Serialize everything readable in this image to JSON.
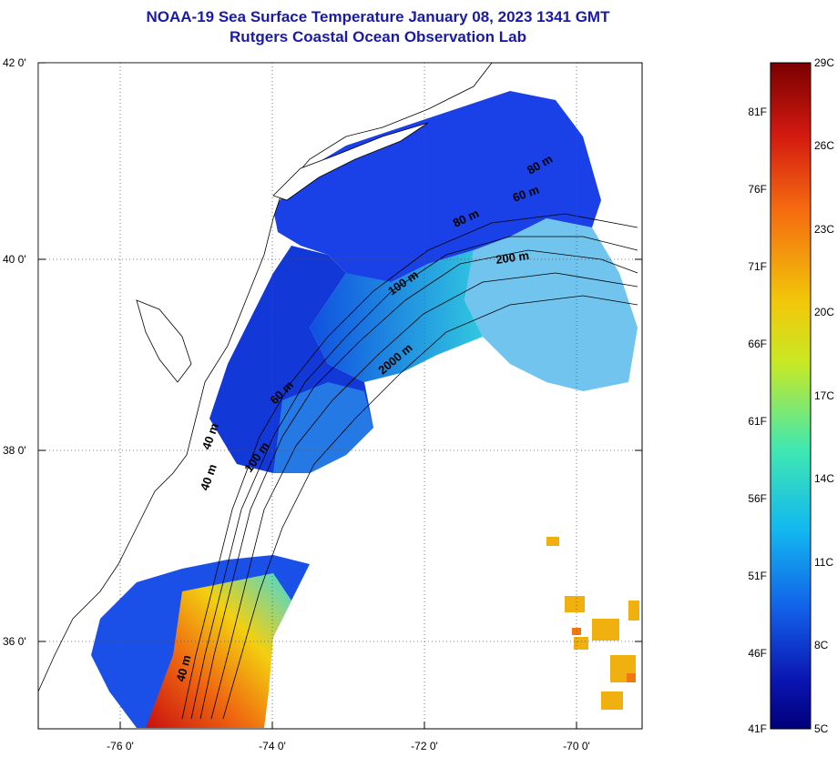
{
  "title": {
    "line1": "NOAA-19 Sea Surface Temperature January 08, 2023 1341 GMT",
    "line2": "Rutgers Coastal Ocean Observation Lab"
  },
  "map": {
    "lat_labels": [
      "42 0'",
      "40 0'",
      "38 0'",
      "36 0'"
    ],
    "lon_labels": [
      "-76 0'",
      "-74 0'",
      "-72 0'",
      "-70 0'"
    ],
    "contour_labels": [
      "40 m",
      "60 m",
      "80 m",
      "100 m",
      "200 m",
      "2000 m",
      "40 m",
      "60 m",
      "80 m",
      "100 m",
      "40 m"
    ]
  },
  "colorbar": {
    "celsius_labels": [
      "29C",
      "26C",
      "23C",
      "20C",
      "17C",
      "14C",
      "11C",
      "8C",
      "5C"
    ],
    "fahrenheit_labels": [
      "81F",
      "76F",
      "71F",
      "66F",
      "61F",
      "56F",
      "51F",
      "46F",
      "41F"
    ],
    "colors": [
      "#7a0000",
      "#d41a10",
      "#f56a10",
      "#f2c80a",
      "#c8e824",
      "#40e8b0",
      "#12b8f0",
      "#1260e8",
      "#0a14b0",
      "#00007a"
    ]
  }
}
